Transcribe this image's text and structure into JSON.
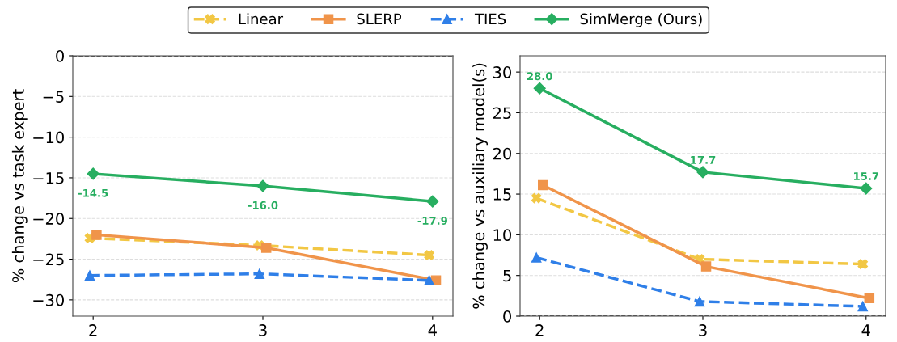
{
  "chart_data": [
    {
      "type": "line",
      "ylabel": "% change vs task expert",
      "xlim": [
        1.88,
        4.12
      ],
      "xticks": [
        2,
        3,
        4
      ],
      "ylim": [
        -32,
        0
      ],
      "yticks": [
        {
          "value": -30,
          "label": "−30"
        },
        {
          "value": -25,
          "label": "−25"
        },
        {
          "value": -20,
          "label": "−20"
        },
        {
          "value": -15,
          "label": "−15"
        },
        {
          "value": -10,
          "label": "−10"
        },
        {
          "value": -5,
          "label": "−5"
        },
        0
      ],
      "grid": "y",
      "legend": "top",
      "ref_lines": [
        {
          "axis": "y",
          "value": 0,
          "color": "#333333",
          "line_style": "dashed"
        }
      ],
      "series": [
        {
          "name": "Linear",
          "color": "#f2c744",
          "marker": "cross",
          "line_style": "dashed",
          "x": [
            1.98,
            2.98,
            3.98
          ],
          "values": [
            -22.4,
            -23.3,
            -24.5
          ]
        },
        {
          "name": "SLERP",
          "color": "#f0944a",
          "marker": "square",
          "line_style": "solid",
          "x": [
            2.02,
            3.02,
            4.02
          ],
          "values": [
            -22.0,
            -23.6,
            -27.6
          ]
        },
        {
          "name": "TIES",
          "color": "#2f7fe8",
          "marker": "triangle",
          "line_style": "dashed",
          "x": [
            1.98,
            2.98,
            3.98
          ],
          "values": [
            -27.0,
            -26.8,
            -27.6
          ]
        },
        {
          "name": "SimMerge (Ours)",
          "color": "#27ae60",
          "marker": "diamond",
          "line_style": "solid",
          "x": [
            2,
            3,
            4
          ],
          "values": [
            -14.5,
            -16.0,
            -17.9
          ],
          "value_labels": [
            "-14.5",
            "-16.0",
            "-17.9"
          ]
        }
      ]
    },
    {
      "type": "line",
      "ylabel": "% change vs auxiliary model(s)",
      "xlim": [
        1.88,
        4.12
      ],
      "xticks": [
        2,
        3,
        4
      ],
      "ylim": [
        0,
        32
      ],
      "yticks": [
        0,
        5,
        10,
        15,
        20,
        25,
        30
      ],
      "grid": "y",
      "ref_lines": [
        {
          "axis": "y",
          "value": 0,
          "color": "#333333",
          "line_style": "dashed"
        }
      ],
      "series": [
        {
          "name": "Linear",
          "color": "#f2c744",
          "marker": "cross",
          "line_style": "dashed",
          "x": [
            1.98,
            2.98,
            3.98
          ],
          "values": [
            14.5,
            7.0,
            6.4
          ]
        },
        {
          "name": "SLERP",
          "color": "#f0944a",
          "marker": "square",
          "line_style": "solid",
          "x": [
            2.02,
            3.02,
            4.02
          ],
          "values": [
            16.1,
            6.1,
            2.2
          ]
        },
        {
          "name": "TIES",
          "color": "#2f7fe8",
          "marker": "triangle",
          "line_style": "dashed",
          "x": [
            1.98,
            2.98,
            3.98
          ],
          "values": [
            7.2,
            1.8,
            1.2
          ]
        },
        {
          "name": "SimMerge (Ours)",
          "color": "#27ae60",
          "marker": "diamond",
          "line_style": "solid",
          "x": [
            2,
            3,
            4
          ],
          "values": [
            28.0,
            17.7,
            15.7
          ],
          "value_labels": [
            "28.0",
            "17.7",
            "15.7"
          ]
        }
      ]
    }
  ]
}
